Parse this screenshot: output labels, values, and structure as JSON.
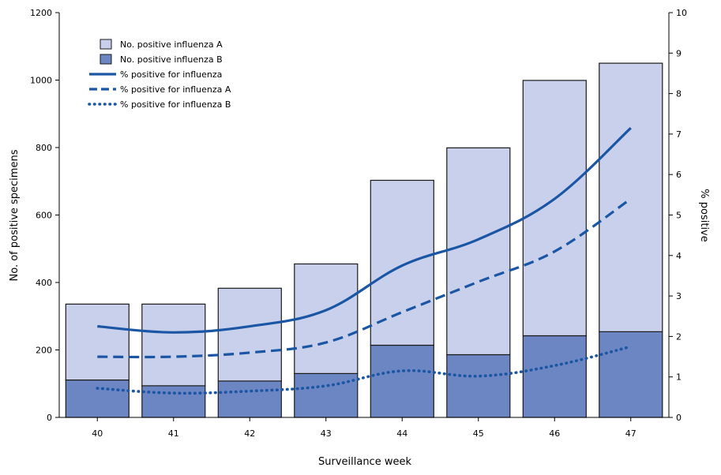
{
  "chart_data": {
    "type": "bar",
    "categories": [
      "40",
      "41",
      "42",
      "43",
      "44",
      "45",
      "46",
      "47"
    ],
    "xlabel": "Surveillance week",
    "ylabel": "No. of positive specimens",
    "y2label": "% positive",
    "ylim": [
      0,
      1200
    ],
    "y2lim": [
      0,
      10
    ],
    "y_ticks": [
      "0",
      "200",
      "400",
      "600",
      "800",
      "1000",
      "1200"
    ],
    "y2_ticks": [
      "0",
      "1",
      "2",
      "3",
      "4",
      "5",
      "6",
      "7",
      "8",
      "9",
      "10"
    ],
    "stacked": true,
    "legend_position": "top-left",
    "bar_series": [
      {
        "name": "No. positive influenza B",
        "values": [
          111,
          94,
          108,
          130,
          214,
          186,
          242,
          254
        ],
        "color": "#6c85c3"
      },
      {
        "name": "No. positive influenza A",
        "values": [
          225,
          242,
          275,
          325,
          489,
          613,
          757,
          796
        ],
        "color": "#c9d0ec"
      }
    ],
    "line_series": [
      {
        "name": "% positive for influenza",
        "values": [
          2.25,
          2.1,
          2.25,
          2.65,
          3.75,
          4.4,
          5.4,
          7.15
        ],
        "color": "#1a56a4",
        "style": "solid"
      },
      {
        "name": "% positive for influenza A",
        "values": [
          1.5,
          1.5,
          1.6,
          1.85,
          2.6,
          3.35,
          4.1,
          5.4
        ],
        "color": "#1a56a4",
        "style": "dashed"
      },
      {
        "name": "% positive for influenza B",
        "values": [
          0.72,
          0.6,
          0.65,
          0.78,
          1.15,
          1.02,
          1.28,
          1.75
        ],
        "color": "#1a56a4",
        "style": "dotted"
      }
    ],
    "legend": [
      {
        "label": "No. positive influenza A",
        "kind": "box",
        "color": "#c9d0ec"
      },
      {
        "label": "No. positive influenza B",
        "kind": "box",
        "color": "#6c85c3"
      },
      {
        "label": "% positive for influenza",
        "kind": "line",
        "style": "solid"
      },
      {
        "label": "% positive for influenza A",
        "kind": "line",
        "style": "dashed"
      },
      {
        "label": "% positive for influenza B",
        "kind": "line",
        "style": "dotted"
      }
    ]
  }
}
